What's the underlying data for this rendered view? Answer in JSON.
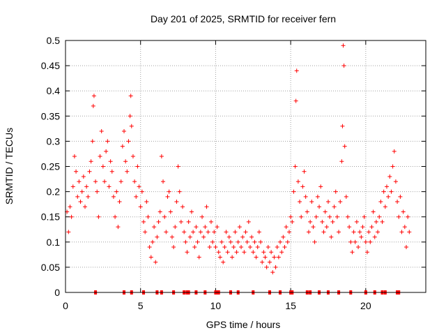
{
  "chart_data": {
    "type": "scatter",
    "title": "Day 201 of 2025, SRMTID for receiver fern",
    "xlabel": "GPS time / hours",
    "ylabel": "SRMTID / TECUs",
    "xlim": [
      0,
      24
    ],
    "ylim": [
      0,
      0.5
    ],
    "x_ticks": [
      "0",
      "5",
      "10",
      "15",
      "20"
    ],
    "y_ticks": [
      "0",
      "0.05",
      "0.1",
      "0.15",
      "0.2",
      "0.25",
      "0.3",
      "0.35",
      "0.4",
      "0.45",
      "0.5"
    ],
    "grid": true,
    "marker": "+",
    "series_color": "#ff0000",
    "series": [
      {
        "name": "SRMTID",
        "points": [
          [
            0.1,
            0.16
          ],
          [
            0.2,
            0.12
          ],
          [
            0.3,
            0.17
          ],
          [
            0.4,
            0.15
          ],
          [
            0.5,
            0.21
          ],
          [
            0.6,
            0.27
          ],
          [
            0.7,
            0.24
          ],
          [
            0.8,
            0.19
          ],
          [
            0.9,
            0.22
          ],
          [
            1.0,
            0.18
          ],
          [
            1.1,
            0.2
          ],
          [
            1.2,
            0.23
          ],
          [
            1.3,
            0.17
          ],
          [
            1.4,
            0.21
          ],
          [
            1.5,
            0.19
          ],
          [
            1.6,
            0.24
          ],
          [
            1.7,
            0.26
          ],
          [
            1.8,
            0.3
          ],
          [
            1.85,
            0.37
          ],
          [
            1.9,
            0.39
          ],
          [
            2.0,
            0.22
          ],
          [
            2.1,
            0.2
          ],
          [
            2.2,
            0.15
          ],
          [
            2.3,
            0.27
          ],
          [
            2.4,
            0.32
          ],
          [
            2.5,
            0.25
          ],
          [
            2.6,
            0.22
          ],
          [
            2.7,
            0.28
          ],
          [
            2.8,
            0.3
          ],
          [
            2.9,
            0.21
          ],
          [
            3.0,
            0.26
          ],
          [
            3.1,
            0.24
          ],
          [
            3.2,
            0.19
          ],
          [
            3.3,
            0.15
          ],
          [
            3.4,
            0.2
          ],
          [
            3.5,
            0.13
          ],
          [
            3.6,
            0.18
          ],
          [
            3.7,
            0.22
          ],
          [
            3.8,
            0.29
          ],
          [
            3.9,
            0.32
          ],
          [
            4.0,
            0.26
          ],
          [
            4.1,
            0.24
          ],
          [
            4.2,
            0.3
          ],
          [
            4.3,
            0.35
          ],
          [
            4.35,
            0.39
          ],
          [
            4.4,
            0.33
          ],
          [
            4.5,
            0.27
          ],
          [
            4.6,
            0.22
          ],
          [
            4.7,
            0.19
          ],
          [
            4.8,
            0.25
          ],
          [
            4.9,
            0.21
          ],
          [
            5.0,
            0.17
          ],
          [
            5.1,
            0.2
          ],
          [
            5.2,
            0.14
          ],
          [
            5.3,
            0.12
          ],
          [
            5.4,
            0.18
          ],
          [
            5.5,
            0.15
          ],
          [
            5.6,
            0.09
          ],
          [
            5.7,
            0.07
          ],
          [
            5.8,
            0.1
          ],
          [
            5.9,
            0.13
          ],
          [
            6.0,
            0.06
          ],
          [
            6.1,
            0.11
          ],
          [
            6.2,
            0.14
          ],
          [
            6.3,
            0.16
          ],
          [
            6.4,
            0.27
          ],
          [
            6.5,
            0.22
          ],
          [
            6.6,
            0.15
          ],
          [
            6.7,
            0.12
          ],
          [
            6.8,
            0.19
          ],
          [
            6.9,
            0.2
          ],
          [
            7.0,
            0.16
          ],
          [
            7.1,
            0.11
          ],
          [
            7.2,
            0.09
          ],
          [
            7.3,
            0.13
          ],
          [
            7.4,
            0.18
          ],
          [
            7.5,
            0.25
          ],
          [
            7.6,
            0.2
          ],
          [
            7.7,
            0.14
          ],
          [
            7.8,
            0.17
          ],
          [
            7.9,
            0.12
          ],
          [
            8.0,
            0.1
          ],
          [
            8.1,
            0.08
          ],
          [
            8.2,
            0.14
          ],
          [
            8.3,
            0.11
          ],
          [
            8.4,
            0.16
          ],
          [
            8.5,
            0.12
          ],
          [
            8.6,
            0.09
          ],
          [
            8.7,
            0.13
          ],
          [
            8.8,
            0.1
          ],
          [
            8.9,
            0.07
          ],
          [
            9.0,
            0.12
          ],
          [
            9.1,
            0.15
          ],
          [
            9.2,
            0.11
          ],
          [
            9.3,
            0.13
          ],
          [
            9.4,
            0.17
          ],
          [
            9.5,
            0.12
          ],
          [
            9.6,
            0.09
          ],
          [
            9.7,
            0.14
          ],
          [
            9.8,
            0.1
          ],
          [
            9.9,
            0.12
          ],
          [
            10.0,
            0.09
          ],
          [
            10.1,
            0.13
          ],
          [
            10.2,
            0.08
          ],
          [
            10.3,
            0.07
          ],
          [
            10.4,
            0.1
          ],
          [
            10.5,
            0.06
          ],
          [
            10.6,
            0.09
          ],
          [
            10.7,
            0.12
          ],
          [
            10.8,
            0.08
          ],
          [
            10.9,
            0.11
          ],
          [
            11.0,
            0.1
          ],
          [
            11.1,
            0.07
          ],
          [
            11.2,
            0.09
          ],
          [
            11.3,
            0.12
          ],
          [
            11.4,
            0.08
          ],
          [
            11.5,
            0.1
          ],
          [
            11.6,
            0.13
          ],
          [
            11.7,
            0.09
          ],
          [
            11.8,
            0.11
          ],
          [
            11.9,
            0.08
          ],
          [
            12.0,
            0.12
          ],
          [
            12.1,
            0.1
          ],
          [
            12.2,
            0.14
          ],
          [
            12.3,
            0.09
          ],
          [
            12.4,
            0.11
          ],
          [
            12.5,
            0.08
          ],
          [
            12.6,
            0.1
          ],
          [
            12.7,
            0.07
          ],
          [
            12.8,
            0.09
          ],
          [
            12.9,
            0.12
          ],
          [
            13.0,
            0.1
          ],
          [
            13.1,
            0.06
          ],
          [
            13.2,
            0.08
          ],
          [
            13.3,
            0.07
          ],
          [
            13.4,
            0.05
          ],
          [
            13.5,
            0.09
          ],
          [
            13.6,
            0.06
          ],
          [
            13.7,
            0.08
          ],
          [
            13.8,
            0.04
          ],
          [
            13.9,
            0.07
          ],
          [
            14.0,
            0.05
          ],
          [
            14.1,
            0.09
          ],
          [
            14.2,
            0.07
          ],
          [
            14.3,
            0.1
          ],
          [
            14.4,
            0.08
          ],
          [
            14.5,
            0.11
          ],
          [
            14.6,
            0.09
          ],
          [
            14.7,
            0.13
          ],
          [
            14.8,
            0.1
          ],
          [
            14.9,
            0.12
          ],
          [
            15.0,
            0.15
          ],
          [
            15.1,
            0.14
          ],
          [
            15.2,
            0.2
          ],
          [
            15.3,
            0.25
          ],
          [
            15.35,
            0.38
          ],
          [
            15.4,
            0.44
          ],
          [
            15.5,
            0.22
          ],
          [
            15.6,
            0.18
          ],
          [
            15.7,
            0.15
          ],
          [
            15.8,
            0.21
          ],
          [
            15.9,
            0.24
          ],
          [
            16.0,
            0.19
          ],
          [
            16.1,
            0.16
          ],
          [
            16.2,
            0.12
          ],
          [
            16.3,
            0.14
          ],
          [
            16.4,
            0.18
          ],
          [
            16.5,
            0.13
          ],
          [
            16.6,
            0.1
          ],
          [
            16.7,
            0.15
          ],
          [
            16.8,
            0.19
          ],
          [
            16.9,
            0.17
          ],
          [
            17.0,
            0.21
          ],
          [
            17.1,
            0.14
          ],
          [
            17.2,
            0.12
          ],
          [
            17.3,
            0.16
          ],
          [
            17.4,
            0.13
          ],
          [
            17.5,
            0.18
          ],
          [
            17.6,
            0.15
          ],
          [
            17.7,
            0.11
          ],
          [
            17.8,
            0.14
          ],
          [
            17.9,
            0.17
          ],
          [
            18.0,
            0.2
          ],
          [
            18.1,
            0.15
          ],
          [
            18.2,
            0.12
          ],
          [
            18.3,
            0.18
          ],
          [
            18.4,
            0.26
          ],
          [
            18.45,
            0.33
          ],
          [
            18.5,
            0.49
          ],
          [
            18.55,
            0.45
          ],
          [
            18.6,
            0.29
          ],
          [
            18.7,
            0.19
          ],
          [
            18.8,
            0.15
          ],
          [
            18.9,
            0.13
          ],
          [
            19.0,
            0.1
          ],
          [
            19.1,
            0.08
          ],
          [
            19.2,
            0.12
          ],
          [
            19.3,
            0.1
          ],
          [
            19.4,
            0.14
          ],
          [
            19.5,
            0.09
          ],
          [
            19.6,
            0.12
          ],
          [
            19.7,
            0.11
          ],
          [
            19.8,
            0.13
          ],
          [
            19.9,
            0.15
          ],
          [
            20.0,
            0.1
          ],
          [
            20.1,
            0.08
          ],
          [
            20.2,
            0.12
          ],
          [
            20.3,
            0.1
          ],
          [
            20.4,
            0.13
          ],
          [
            20.5,
            0.16
          ],
          [
            20.6,
            0.11
          ],
          [
            20.7,
            0.14
          ],
          [
            20.8,
            0.12
          ],
          [
            20.9,
            0.15
          ],
          [
            21.0,
            0.18
          ],
          [
            21.1,
            0.14
          ],
          [
            21.2,
            0.2
          ],
          [
            21.3,
            0.17
          ],
          [
            21.4,
            0.21
          ],
          [
            21.5,
            0.19
          ],
          [
            21.6,
            0.23
          ],
          [
            21.7,
            0.2
          ],
          [
            21.8,
            0.25
          ],
          [
            21.9,
            0.28
          ],
          [
            22.0,
            0.22
          ],
          [
            22.1,
            0.18
          ],
          [
            22.2,
            0.15
          ],
          [
            22.3,
            0.19
          ],
          [
            22.4,
            0.12
          ],
          [
            22.5,
            0.16
          ],
          [
            22.6,
            0.13
          ],
          [
            22.7,
            0.09
          ],
          [
            22.8,
            0.15
          ],
          [
            22.9,
            0.12
          ]
        ]
      }
    ],
    "zero_markers": [
      2.0,
      3.9,
      4.4,
      5.2,
      6.1,
      6.4,
      7.2,
      7.9,
      8.1,
      8.2,
      8.7,
      9.3,
      10.0,
      10.1,
      10.2,
      11.0,
      11.5,
      12.5,
      13.6,
      14.3,
      15.0,
      15.1,
      16.1,
      16.3,
      16.9,
      17.5,
      18.2,
      19.0,
      20.0,
      20.6,
      21.1,
      21.3,
      22.1,
      22.2
    ]
  }
}
